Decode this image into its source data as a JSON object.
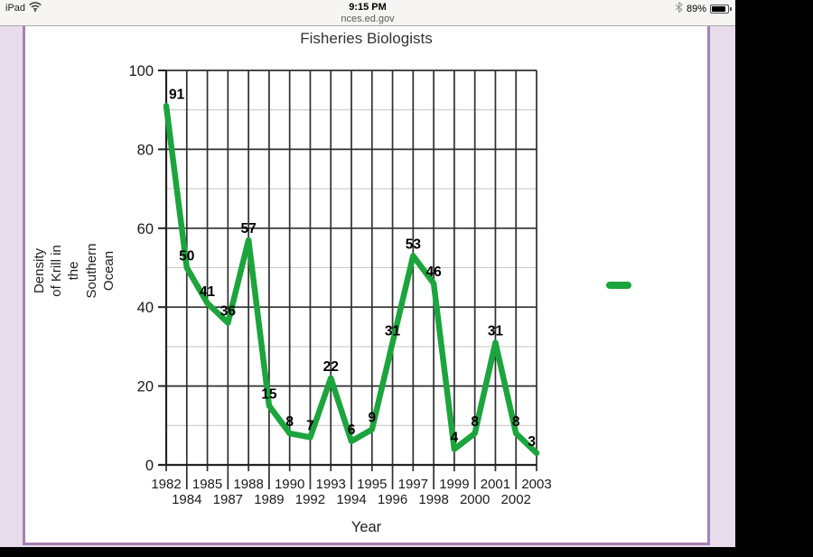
{
  "status_bar": {
    "device": "iPad",
    "time": "9:15 PM",
    "battery_percent": "89%",
    "battery_level": 0.89,
    "icons": [
      "wifi-icon",
      "bluetooth-icon",
      "battery-icon"
    ]
  },
  "url_bar": {
    "domain": "nces.ed.gov"
  },
  "colors": {
    "series_green": "#1ba53c",
    "page_border_purple": "#a87fb4",
    "page_margin_lavender": "#e6dcea",
    "grid_major": "#2f2f2f",
    "grid_minor": "#c9c9c9"
  },
  "chart_data": {
    "type": "line",
    "title": "Fisheries Biologists",
    "xlabel": "Year",
    "ylabel_lines": [
      "Density",
      "of Krill in",
      "the",
      "Southern",
      "Ocean"
    ],
    "categories": [
      "1982",
      "1984",
      "1985",
      "1987",
      "1988",
      "1989",
      "1990",
      "1992",
      "1993",
      "1994",
      "1995",
      "1996",
      "1997",
      "1998",
      "1999",
      "2000",
      "2001",
      "2002",
      "2003"
    ],
    "values": [
      91,
      50,
      41,
      36,
      57,
      15,
      8,
      7,
      22,
      6,
      9,
      31,
      53,
      46,
      4,
      8,
      31,
      8,
      3
    ],
    "ylim": [
      0,
      100
    ],
    "y_major_step": 20,
    "y_minor_step": 10,
    "y_tick_labels": [
      "0",
      "20",
      "40",
      "60",
      "80",
      "100"
    ],
    "data_labels_shown": true,
    "x_label_layout": "staggered-two-rows",
    "grid": {
      "vertical_per_category": true,
      "horizontal_major": "black",
      "horizontal_minor": "light-gray"
    },
    "legend": {
      "position": "right-of-plot",
      "marker": "green-dash",
      "text": ""
    },
    "line_color": "#1ba53c"
  }
}
